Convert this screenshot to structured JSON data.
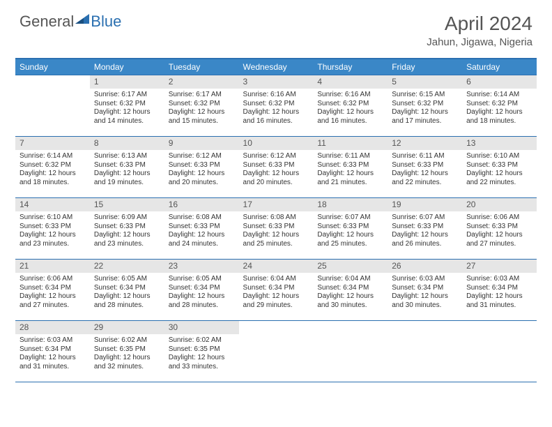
{
  "logo": {
    "part1": "General",
    "part2": "Blue"
  },
  "title": "April 2024",
  "location": "Jahun, Jigawa, Nigeria",
  "colors": {
    "header_bg": "#3a87c7",
    "header_border": "#2a6fb0",
    "daynum_bg": "#e6e6e6",
    "text": "#333333",
    "title_text": "#555555"
  },
  "weekdays": [
    "Sunday",
    "Monday",
    "Tuesday",
    "Wednesday",
    "Thursday",
    "Friday",
    "Saturday"
  ],
  "weeks": [
    [
      {
        "empty": true
      },
      {
        "n": "1",
        "sr": "Sunrise: 6:17 AM",
        "ss": "Sunset: 6:32 PM",
        "d1": "Daylight: 12 hours",
        "d2": "and 14 minutes."
      },
      {
        "n": "2",
        "sr": "Sunrise: 6:17 AM",
        "ss": "Sunset: 6:32 PM",
        "d1": "Daylight: 12 hours",
        "d2": "and 15 minutes."
      },
      {
        "n": "3",
        "sr": "Sunrise: 6:16 AM",
        "ss": "Sunset: 6:32 PM",
        "d1": "Daylight: 12 hours",
        "d2": "and 16 minutes."
      },
      {
        "n": "4",
        "sr": "Sunrise: 6:16 AM",
        "ss": "Sunset: 6:32 PM",
        "d1": "Daylight: 12 hours",
        "d2": "and 16 minutes."
      },
      {
        "n": "5",
        "sr": "Sunrise: 6:15 AM",
        "ss": "Sunset: 6:32 PM",
        "d1": "Daylight: 12 hours",
        "d2": "and 17 minutes."
      },
      {
        "n": "6",
        "sr": "Sunrise: 6:14 AM",
        "ss": "Sunset: 6:32 PM",
        "d1": "Daylight: 12 hours",
        "d2": "and 18 minutes."
      }
    ],
    [
      {
        "n": "7",
        "sr": "Sunrise: 6:14 AM",
        "ss": "Sunset: 6:32 PM",
        "d1": "Daylight: 12 hours",
        "d2": "and 18 minutes."
      },
      {
        "n": "8",
        "sr": "Sunrise: 6:13 AM",
        "ss": "Sunset: 6:33 PM",
        "d1": "Daylight: 12 hours",
        "d2": "and 19 minutes."
      },
      {
        "n": "9",
        "sr": "Sunrise: 6:12 AM",
        "ss": "Sunset: 6:33 PM",
        "d1": "Daylight: 12 hours",
        "d2": "and 20 minutes."
      },
      {
        "n": "10",
        "sr": "Sunrise: 6:12 AM",
        "ss": "Sunset: 6:33 PM",
        "d1": "Daylight: 12 hours",
        "d2": "and 20 minutes."
      },
      {
        "n": "11",
        "sr": "Sunrise: 6:11 AM",
        "ss": "Sunset: 6:33 PM",
        "d1": "Daylight: 12 hours",
        "d2": "and 21 minutes."
      },
      {
        "n": "12",
        "sr": "Sunrise: 6:11 AM",
        "ss": "Sunset: 6:33 PM",
        "d1": "Daylight: 12 hours",
        "d2": "and 22 minutes."
      },
      {
        "n": "13",
        "sr": "Sunrise: 6:10 AM",
        "ss": "Sunset: 6:33 PM",
        "d1": "Daylight: 12 hours",
        "d2": "and 22 minutes."
      }
    ],
    [
      {
        "n": "14",
        "sr": "Sunrise: 6:10 AM",
        "ss": "Sunset: 6:33 PM",
        "d1": "Daylight: 12 hours",
        "d2": "and 23 minutes."
      },
      {
        "n": "15",
        "sr": "Sunrise: 6:09 AM",
        "ss": "Sunset: 6:33 PM",
        "d1": "Daylight: 12 hours",
        "d2": "and 23 minutes."
      },
      {
        "n": "16",
        "sr": "Sunrise: 6:08 AM",
        "ss": "Sunset: 6:33 PM",
        "d1": "Daylight: 12 hours",
        "d2": "and 24 minutes."
      },
      {
        "n": "17",
        "sr": "Sunrise: 6:08 AM",
        "ss": "Sunset: 6:33 PM",
        "d1": "Daylight: 12 hours",
        "d2": "and 25 minutes."
      },
      {
        "n": "18",
        "sr": "Sunrise: 6:07 AM",
        "ss": "Sunset: 6:33 PM",
        "d1": "Daylight: 12 hours",
        "d2": "and 25 minutes."
      },
      {
        "n": "19",
        "sr": "Sunrise: 6:07 AM",
        "ss": "Sunset: 6:33 PM",
        "d1": "Daylight: 12 hours",
        "d2": "and 26 minutes."
      },
      {
        "n": "20",
        "sr": "Sunrise: 6:06 AM",
        "ss": "Sunset: 6:33 PM",
        "d1": "Daylight: 12 hours",
        "d2": "and 27 minutes."
      }
    ],
    [
      {
        "n": "21",
        "sr": "Sunrise: 6:06 AM",
        "ss": "Sunset: 6:34 PM",
        "d1": "Daylight: 12 hours",
        "d2": "and 27 minutes."
      },
      {
        "n": "22",
        "sr": "Sunrise: 6:05 AM",
        "ss": "Sunset: 6:34 PM",
        "d1": "Daylight: 12 hours",
        "d2": "and 28 minutes."
      },
      {
        "n": "23",
        "sr": "Sunrise: 6:05 AM",
        "ss": "Sunset: 6:34 PM",
        "d1": "Daylight: 12 hours",
        "d2": "and 28 minutes."
      },
      {
        "n": "24",
        "sr": "Sunrise: 6:04 AM",
        "ss": "Sunset: 6:34 PM",
        "d1": "Daylight: 12 hours",
        "d2": "and 29 minutes."
      },
      {
        "n": "25",
        "sr": "Sunrise: 6:04 AM",
        "ss": "Sunset: 6:34 PM",
        "d1": "Daylight: 12 hours",
        "d2": "and 30 minutes."
      },
      {
        "n": "26",
        "sr": "Sunrise: 6:03 AM",
        "ss": "Sunset: 6:34 PM",
        "d1": "Daylight: 12 hours",
        "d2": "and 30 minutes."
      },
      {
        "n": "27",
        "sr": "Sunrise: 6:03 AM",
        "ss": "Sunset: 6:34 PM",
        "d1": "Daylight: 12 hours",
        "d2": "and 31 minutes."
      }
    ],
    [
      {
        "n": "28",
        "sr": "Sunrise: 6:03 AM",
        "ss": "Sunset: 6:34 PM",
        "d1": "Daylight: 12 hours",
        "d2": "and 31 minutes."
      },
      {
        "n": "29",
        "sr": "Sunrise: 6:02 AM",
        "ss": "Sunset: 6:35 PM",
        "d1": "Daylight: 12 hours",
        "d2": "and 32 minutes."
      },
      {
        "n": "30",
        "sr": "Sunrise: 6:02 AM",
        "ss": "Sunset: 6:35 PM",
        "d1": "Daylight: 12 hours",
        "d2": "and 33 minutes."
      },
      {
        "empty": true
      },
      {
        "empty": true
      },
      {
        "empty": true
      },
      {
        "empty": true
      }
    ]
  ]
}
